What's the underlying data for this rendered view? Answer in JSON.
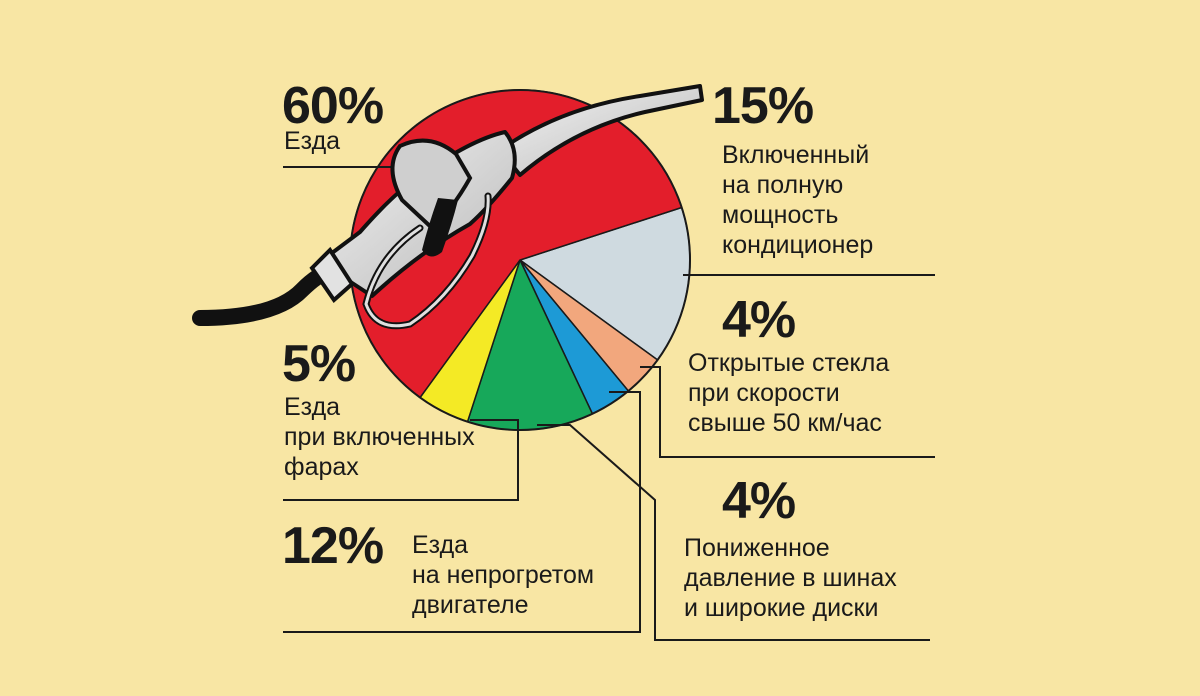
{
  "colors": {
    "background": "#f8e6a4",
    "leader": "#1a1a1a"
  },
  "chart_data": {
    "type": "pie",
    "slices": [
      {
        "key": "driving",
        "value": 60,
        "percent_label": "60%",
        "label": "Езда",
        "color": "#e31e2b"
      },
      {
        "key": "ac",
        "value": 15,
        "percent_label": "15%",
        "label": "Включенный\nна полную\nмощность\nкондиционер",
        "color": "#cfdae0"
      },
      {
        "key": "windows",
        "value": 4,
        "percent_label": "4%",
        "label": "Открытые стекла\nпри скорости\nсвыше 50 км/час",
        "color": "#f2a77d"
      },
      {
        "key": "tires",
        "value": 4,
        "percent_label": "4%",
        "label": "Пониженное\nдавление в шинах\nи широкие диски",
        "color": "#1d9ad6"
      },
      {
        "key": "cold_engine",
        "value": 12,
        "percent_label": "12%",
        "label": "Езда\nна непрогретом\nдвигателе",
        "color": "#17a85a"
      },
      {
        "key": "headlights",
        "value": 5,
        "percent_label": "5%",
        "label": "Езда\nпри включенных\nфарах",
        "color": "#f4ea25"
      }
    ]
  },
  "illustration": {
    "icon": "fuel-nozzle-icon",
    "hose_color": "#111111",
    "nozzle_color": "#dcdcdc"
  }
}
